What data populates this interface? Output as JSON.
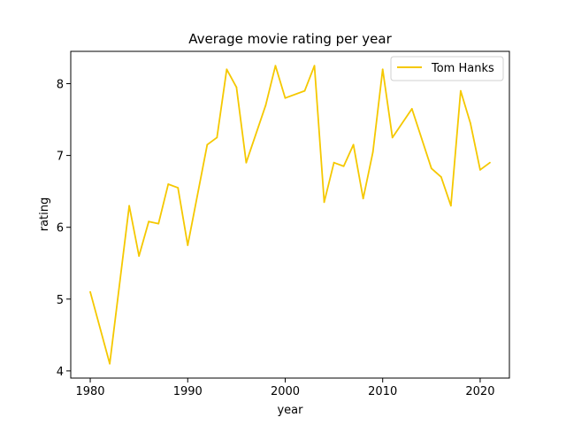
{
  "chart_data": {
    "type": "line",
    "title": "Average movie rating per year",
    "xlabel": "year",
    "ylabel": "rating",
    "xlim": [
      1978,
      2023
    ],
    "ylim": [
      3.9,
      8.45
    ],
    "xticks": [
      1980,
      1990,
      2000,
      2010,
      2020
    ],
    "yticks": [
      4,
      5,
      6,
      7,
      8
    ],
    "grid": false,
    "legend_position": "top-right",
    "series": [
      {
        "name": "Tom Hanks",
        "color": "#f5c800",
        "x": [
          1980,
          1982,
          1984,
          1985,
          1986,
          1987,
          1988,
          1989,
          1990,
          1992,
          1993,
          1994,
          1995,
          1996,
          1998,
          1999,
          2000,
          2002,
          2003,
          2004,
          2005,
          2006,
          2007,
          2008,
          2009,
          2010,
          2011,
          2013,
          2015,
          2016,
          2017,
          2018,
          2019,
          2020,
          2021
        ],
        "y": [
          5.1,
          4.1,
          6.3,
          5.6,
          6.08,
          6.05,
          6.6,
          6.55,
          5.75,
          7.15,
          7.25,
          8.2,
          7.95,
          6.9,
          7.7,
          8.25,
          7.8,
          7.9,
          8.25,
          6.35,
          6.9,
          6.85,
          7.15,
          6.4,
          7.05,
          8.2,
          7.25,
          7.65,
          6.82,
          6.7,
          6.3,
          7.9,
          7.45,
          6.8,
          6.9
        ]
      }
    ]
  }
}
